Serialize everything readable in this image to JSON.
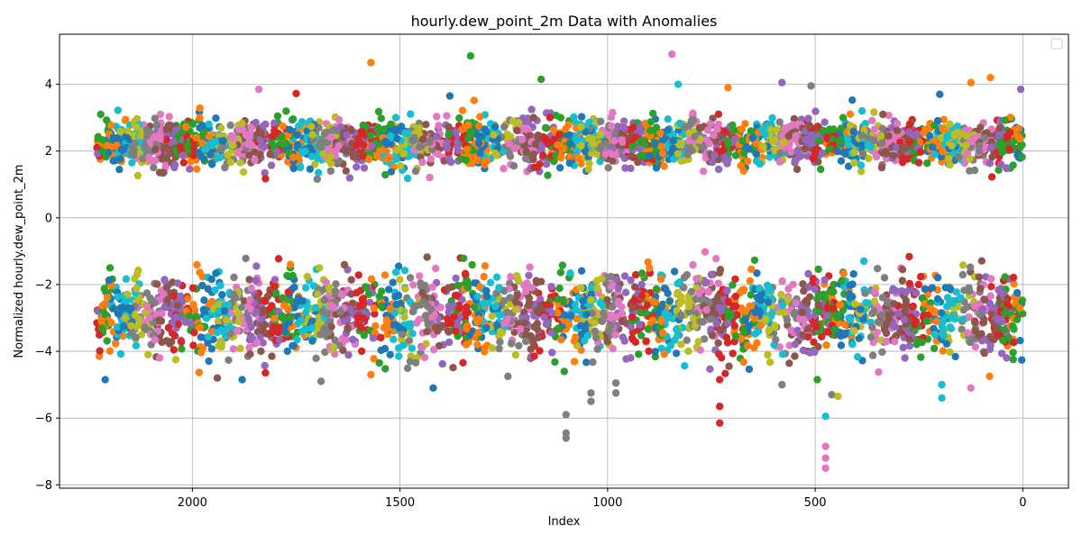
{
  "chart_data": {
    "type": "scatter",
    "title": "hourly.dew_point_2m Data with Anomalies",
    "xlabel": "Index",
    "ylabel": "Normalized hourly.dew_point_2m",
    "xlim": [
      2320,
      -110
    ],
    "ylim": [
      -8.1,
      5.5
    ],
    "x_inverted": true,
    "x_ticks": [
      2000,
      1500,
      1000,
      500,
      0
    ],
    "x_tick_labels": [
      "2000",
      "1500",
      "1000",
      "500",
      "0"
    ],
    "y_ticks": [
      -8,
      -6,
      -4,
      -2,
      0,
      2,
      4
    ],
    "y_tick_labels": [
      "−8",
      "−6",
      "−4",
      "−2",
      "0",
      "2",
      "4"
    ],
    "grid": true,
    "legend": "top-right (empty)",
    "palette": [
      "#1f77b4",
      "#ff7f0e",
      "#2ca02c",
      "#d62728",
      "#9467bd",
      "#8c564b",
      "#e377c2",
      "#7f7f7f",
      "#bcbd22",
      "#17becf"
    ],
    "index_range": [
      0,
      2230
    ],
    "clusters": [
      {
        "name": "upper",
        "center": 2.25,
        "typical_range": [
          1.6,
          3.2
        ]
      },
      {
        "name": "lower",
        "center": -2.9,
        "typical_range": [
          -4.2,
          -1.5
        ]
      }
    ],
    "outliers": [
      {
        "x": 1570,
        "y": 4.65,
        "color": "#ff7f0e"
      },
      {
        "x": 1330,
        "y": 4.85,
        "color": "#2ca02c"
      },
      {
        "x": 1160,
        "y": 4.15,
        "color": "#2ca02c"
      },
      {
        "x": 845,
        "y": 4.9,
        "color": "#e377c2"
      },
      {
        "x": 830,
        "y": 4.0,
        "color": "#17becf"
      },
      {
        "x": 710,
        "y": 3.9,
        "color": "#ff7f0e"
      },
      {
        "x": 580,
        "y": 4.05,
        "color": "#9467bd"
      },
      {
        "x": 510,
        "y": 3.95,
        "color": "#7f7f7f"
      },
      {
        "x": 200,
        "y": 3.7,
        "color": "#1f77b4"
      },
      {
        "x": 125,
        "y": 4.05,
        "color": "#ff7f0e"
      },
      {
        "x": 78,
        "y": 4.2,
        "color": "#ff7f0e"
      },
      {
        "x": 5,
        "y": 3.85,
        "color": "#9467bd"
      },
      {
        "x": 1840,
        "y": 3.85,
        "color": "#e377c2"
      },
      {
        "x": 1750,
        "y": 3.72,
        "color": "#d62728"
      },
      {
        "x": 1380,
        "y": 3.65,
        "color": "#1f77b4"
      },
      {
        "x": 2210,
        "y": -4.85,
        "color": "#1f77b4"
      },
      {
        "x": 2040,
        "y": -4.25,
        "color": "#bcbd22"
      },
      {
        "x": 1940,
        "y": -4.8,
        "color": "#8c564b"
      },
      {
        "x": 1880,
        "y": -4.85,
        "color": "#1f77b4"
      },
      {
        "x": 1690,
        "y": -4.9,
        "color": "#7f7f7f"
      },
      {
        "x": 1570,
        "y": -4.7,
        "color": "#ff7f0e"
      },
      {
        "x": 1420,
        "y": -5.1,
        "color": "#1f77b4"
      },
      {
        "x": 1240,
        "y": -4.75,
        "color": "#7f7f7f"
      },
      {
        "x": 1100,
        "y": -5.9,
        "color": "#7f7f7f"
      },
      {
        "x": 1100,
        "y": -6.45,
        "color": "#7f7f7f"
      },
      {
        "x": 1100,
        "y": -6.6,
        "color": "#7f7f7f"
      },
      {
        "x": 1040,
        "y": -5.25,
        "color": "#7f7f7f"
      },
      {
        "x": 1040,
        "y": -5.5,
        "color": "#7f7f7f"
      },
      {
        "x": 980,
        "y": -4.95,
        "color": "#7f7f7f"
      },
      {
        "x": 980,
        "y": -5.25,
        "color": "#7f7f7f"
      },
      {
        "x": 730,
        "y": -4.85,
        "color": "#d62728"
      },
      {
        "x": 730,
        "y": -5.65,
        "color": "#d62728"
      },
      {
        "x": 730,
        "y": -6.15,
        "color": "#d62728"
      },
      {
        "x": 580,
        "y": -5.0,
        "color": "#7f7f7f"
      },
      {
        "x": 495,
        "y": -4.85,
        "color": "#2ca02c"
      },
      {
        "x": 475,
        "y": -5.95,
        "color": "#17becf"
      },
      {
        "x": 475,
        "y": -6.85,
        "color": "#e377c2"
      },
      {
        "x": 475,
        "y": -7.2,
        "color": "#e377c2"
      },
      {
        "x": 475,
        "y": -7.5,
        "color": "#e377c2"
      },
      {
        "x": 460,
        "y": -5.3,
        "color": "#7f7f7f"
      },
      {
        "x": 445,
        "y": -5.35,
        "color": "#bcbd22"
      },
      {
        "x": 195,
        "y": -5.4,
        "color": "#17becf"
      },
      {
        "x": 195,
        "y": -5.0,
        "color": "#17becf"
      },
      {
        "x": 125,
        "y": -5.1,
        "color": "#e377c2"
      },
      {
        "x": 80,
        "y": -4.75,
        "color": "#ff7f0e"
      }
    ]
  }
}
